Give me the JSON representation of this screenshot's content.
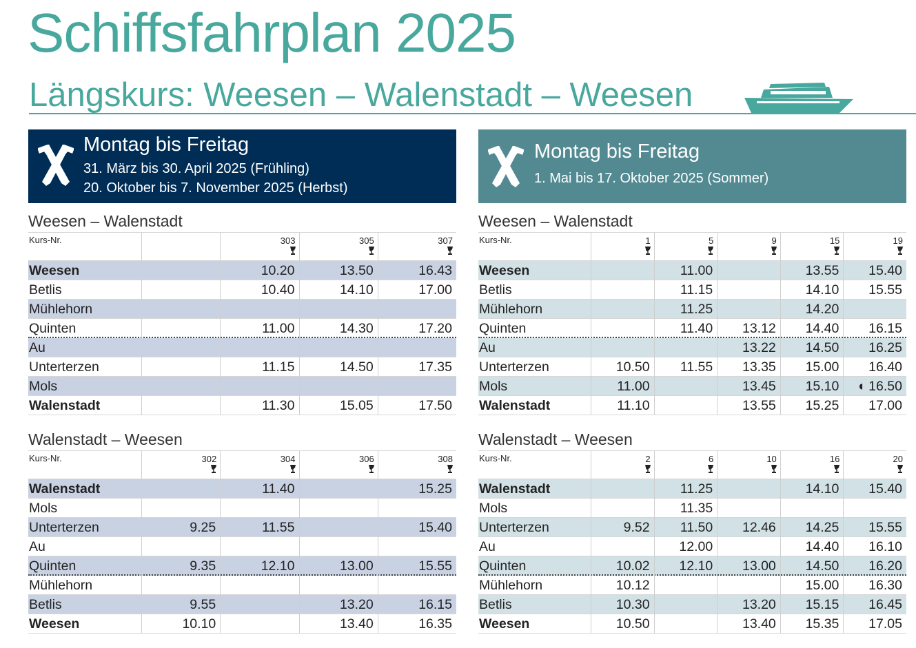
{
  "header": {
    "title": "Schiffsfahrplan 2025",
    "subtitle": "Längskurs: Weesen – Walenstadt – Weesen"
  },
  "panels": [
    {
      "heading": "Montag bis Freitag",
      "lines": [
        "31. März bis 30. April 2025 (Frühling)",
        "20. Oktober bis 7. November 2025 (Herbst)"
      ],
      "tables": [
        {
          "title": "Weesen – Walenstadt",
          "kurs_label": "Kurs-Nr.",
          "courses": [
            null,
            "303",
            "305",
            "307"
          ],
          "rows": [
            {
              "station": "Weesen",
              "times": [
                null,
                "10.20",
                "13.50",
                "16.43"
              ]
            },
            {
              "station": "Betlis",
              "times": [
                null,
                "10.40",
                "14.10",
                "17.00"
              ]
            },
            {
              "station": "Mühlehorn",
              "times": [
                null,
                null,
                null,
                null
              ]
            },
            {
              "station": "Quinten",
              "times": [
                null,
                "11.00",
                "14.30",
                "17.20"
              ]
            },
            {
              "station": "Au",
              "times": [
                null,
                null,
                null,
                null
              ]
            },
            {
              "station": "Unterterzen",
              "times": [
                null,
                "11.15",
                "14.50",
                "17.35"
              ]
            },
            {
              "station": "Mols",
              "times": [
                null,
                null,
                null,
                null
              ]
            },
            {
              "station": "Walenstadt",
              "times": [
                null,
                "11.30",
                "15.05",
                "17.50"
              ]
            }
          ]
        },
        {
          "title": "Walenstadt – Weesen",
          "kurs_label": "Kurs-Nr.",
          "courses": [
            "302",
            "304",
            "306",
            "308"
          ],
          "rows": [
            {
              "station": "Walenstadt",
              "times": [
                null,
                "11.40",
                null,
                "15.25"
              ]
            },
            {
              "station": "Mols",
              "times": [
                null,
                null,
                null,
                null
              ]
            },
            {
              "station": "Unterterzen",
              "times": [
                "9.25",
                "11.55",
                null,
                "15.40"
              ]
            },
            {
              "station": "Au",
              "times": [
                null,
                null,
                null,
                null
              ]
            },
            {
              "station": "Quinten",
              "times": [
                "9.35",
                "12.10",
                "13.00",
                "15.55"
              ]
            },
            {
              "station": "Mühlehorn",
              "times": [
                null,
                null,
                null,
                null
              ]
            },
            {
              "station": "Betlis",
              "times": [
                "9.55",
                null,
                "13.20",
                "16.15"
              ]
            },
            {
              "station": "Weesen",
              "times": [
                "10.10",
                null,
                "13.40",
                "16.35"
              ]
            }
          ]
        }
      ]
    },
    {
      "heading": "Montag bis Freitag",
      "lines": [
        "1. Mai bis 17. Oktober 2025 (Sommer)"
      ],
      "tables": [
        {
          "title": "Weesen – Walenstadt",
          "kurs_label": "Kurs-Nr.",
          "courses": [
            "1",
            "5",
            "9",
            "15",
            "19"
          ],
          "rows": [
            {
              "station": "Weesen",
              "times": [
                null,
                "11.00",
                null,
                "13.55",
                "15.40"
              ]
            },
            {
              "station": "Betlis",
              "times": [
                null,
                "11.15",
                null,
                "14.10",
                "15.55"
              ]
            },
            {
              "station": "Mühlehorn",
              "times": [
                null,
                "11.25",
                null,
                "14.20",
                null
              ]
            },
            {
              "station": "Quinten",
              "times": [
                null,
                "11.40",
                "13.12",
                "14.40",
                "16.15"
              ]
            },
            {
              "station": "Au",
              "times": [
                null,
                null,
                "13.22",
                "14.50",
                "16.25"
              ]
            },
            {
              "station": "Unterterzen",
              "times": [
                "10.50",
                "11.55",
                "13.35",
                "15.00",
                "16.40"
              ]
            },
            {
              "station": "Mols",
              "times": [
                "11.00",
                null,
                "13.45",
                "15.10",
                "◖ 16.50"
              ]
            },
            {
              "station": "Walenstadt",
              "times": [
                "11.10",
                null,
                "13.55",
                "15.25",
                "17.00"
              ]
            }
          ]
        },
        {
          "title": "Walenstadt – Weesen",
          "kurs_label": "Kurs-Nr.",
          "courses": [
            "2",
            "6",
            "10",
            "16",
            "20"
          ],
          "rows": [
            {
              "station": "Walenstadt",
              "times": [
                null,
                "11.25",
                null,
                "14.10",
                "15.40"
              ]
            },
            {
              "station": "Mols",
              "times": [
                null,
                "11.35",
                null,
                null,
                null
              ]
            },
            {
              "station": "Unterterzen",
              "times": [
                "9.52",
                "11.50",
                "12.46",
                "14.25",
                "15.55"
              ]
            },
            {
              "station": "Au",
              "times": [
                null,
                "12.00",
                null,
                "14.40",
                "16.10"
              ]
            },
            {
              "station": "Quinten",
              "times": [
                "10.02",
                "12.10",
                "13.00",
                "14.50",
                "16.20"
              ]
            },
            {
              "station": "Mühlehorn",
              "times": [
                "10.12",
                null,
                null,
                "15.00",
                "16.30"
              ]
            },
            {
              "station": "Betlis",
              "times": [
                "10.30",
                null,
                "13.20",
                "15.15",
                "16.45"
              ]
            },
            {
              "station": "Weesen",
              "times": [
                "10.50",
                null,
                "13.40",
                "15.35",
                "17.05"
              ]
            }
          ]
        }
      ]
    }
  ]
}
